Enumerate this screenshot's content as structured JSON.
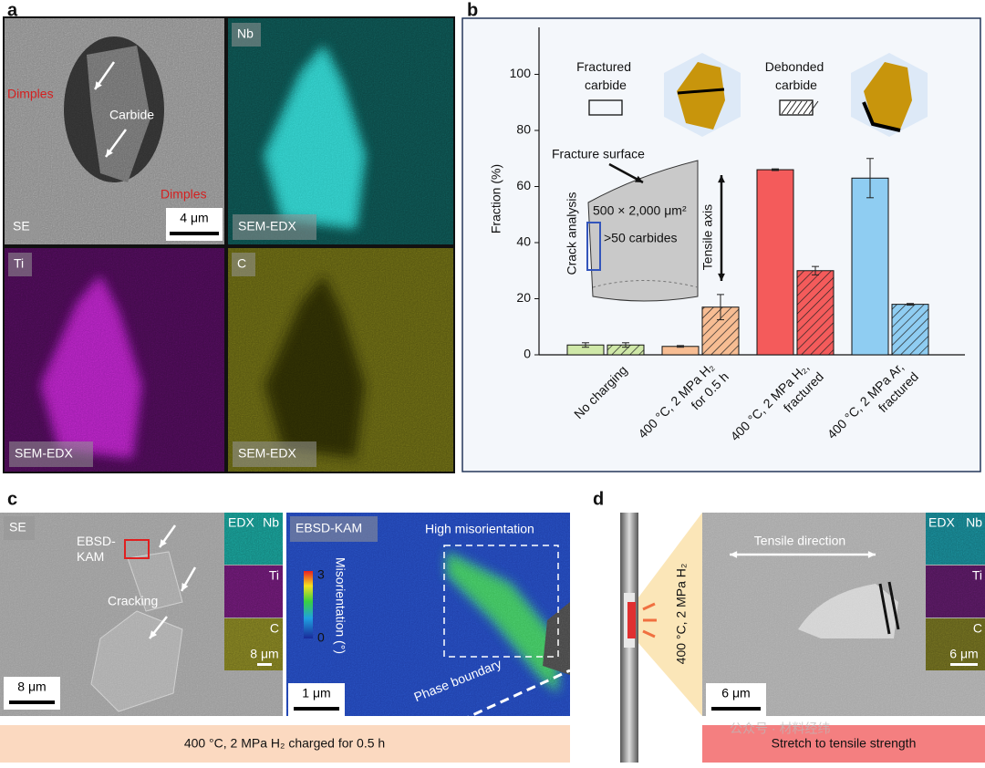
{
  "chart_data": {
    "type": "bar",
    "categories": [
      "No charging",
      "400 °C, 2 MPa H₂ for 0.5 h",
      "400 °C, 2 MPa H₂, fractured",
      "400 °C, 2 MPa Ar, fractured"
    ],
    "category_colors": [
      "#cfe8a8",
      "#f7bd93",
      "#f45b5b",
      "#8fcdf2"
    ],
    "series": [
      {
        "name": "Fractured carbide",
        "pattern": "solid",
        "color": "#111111",
        "values": [
          3.5,
          3,
          66,
          63
        ],
        "errors": [
          0.8,
          0.3,
          0.3,
          7
        ]
      },
      {
        "name": "Debonded carbide",
        "pattern": "hatch",
        "color": "#111111",
        "values": [
          3.5,
          17,
          30,
          18
        ],
        "errors": [
          0.8,
          4.5,
          1.5,
          0.3
        ]
      }
    ],
    "y_label": "Fraction (%)",
    "ylim": [
      0,
      120
    ],
    "yticks": [
      0,
      20,
      40,
      60,
      80,
      100
    ],
    "annotations": {
      "surface": "Fracture surface",
      "analysis": "Crack analysis",
      "area": "500 × 2,000 μm²",
      "count": ">50 carbides",
      "axis": "Tensile axis"
    }
  },
  "panel_a": {
    "label": "a",
    "se": {
      "name": "SE",
      "annotations": [
        "Dimples",
        "Carbide",
        "Dimples"
      ],
      "scale": "4 μm"
    },
    "maps": [
      {
        "element": "Nb",
        "method": "SEM-EDX"
      },
      {
        "element": "Ti",
        "method": "SEM-EDX"
      },
      {
        "element": "C",
        "method": "SEM-EDX"
      }
    ]
  },
  "panel_b": {
    "label": "b"
  },
  "panel_c": {
    "label": "c",
    "se": {
      "name": "SE",
      "annotations": [
        "EBSD-KAM",
        "Cracking"
      ],
      "scale": "8 μm"
    },
    "edx": {
      "name": "EDX",
      "elements": [
        "Nb",
        "Ti",
        "C"
      ],
      "scale": "8 μm"
    },
    "kam": {
      "name": "EBSD-KAM",
      "region": "High misorientation",
      "colorbar_label": "Misorientation (°)",
      "colorbar_max": "3",
      "colorbar_min": "0",
      "boundary": "Phase boundary",
      "scale": "1 μm"
    },
    "condition": "400 °C, 2 MPa H₂ charged for 0.5 h"
  },
  "panel_d": {
    "label": "d",
    "condition": "400 °C, 2 MPa H₂",
    "direction": "Tensile direction",
    "edx": {
      "name": "EDX",
      "elements": [
        "Nb",
        "Ti",
        "C"
      ],
      "scale": "6 μm"
    },
    "scale": "6 μm",
    "action": "Stretch to tensile strength"
  },
  "watermark": "公众号 · 材料经纬"
}
